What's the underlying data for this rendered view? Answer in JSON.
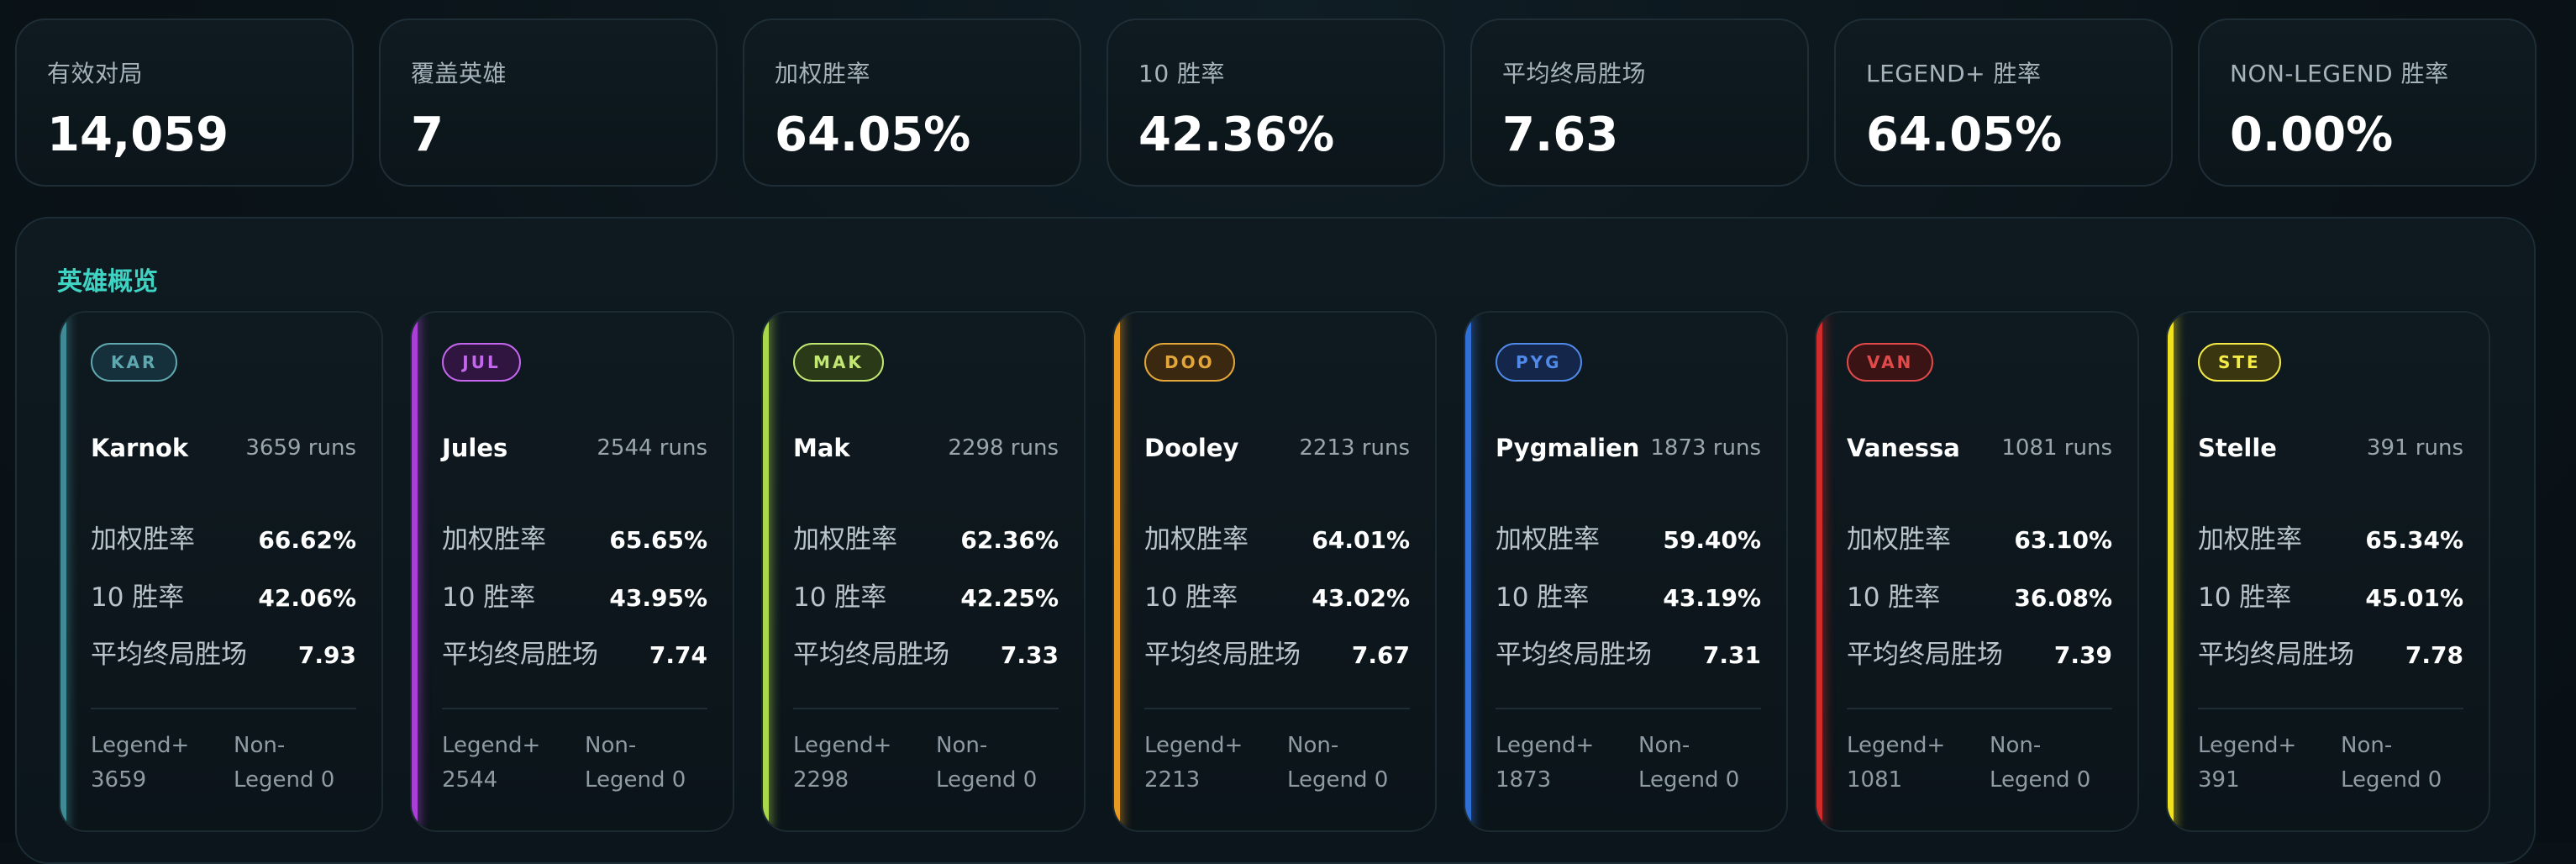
{
  "stats": [
    {
      "label": "有效对局",
      "value": "14,059"
    },
    {
      "label": "覆盖英雄",
      "value": "7"
    },
    {
      "label": "加权胜率",
      "value": "64.05%"
    },
    {
      "label": "10 胜率",
      "value": "42.36%"
    },
    {
      "label": "平均终局胜场",
      "value": "7.63"
    },
    {
      "label": "LEGEND+ 胜率",
      "value": "64.05%"
    },
    {
      "label": "NON-LEGEND 胜率",
      "value": "0.00%"
    }
  ],
  "overview": {
    "title": "英雄概览",
    "metric_labels": {
      "weighted": "加权胜率",
      "ten": "10 胜率",
      "avg": "平均终局胜场"
    },
    "heroes": [
      {
        "badge": "KAR",
        "name": "Karnok",
        "runs": "3659 runs",
        "weighted": "66.62%",
        "ten": "42.06%",
        "avg": "7.93",
        "legend": "Legend+ 3659",
        "non_legend": "Non-Legend 0",
        "accent": "#3e8b95",
        "badge_color": "#5fa8b0",
        "badge_bg": "#15303a"
      },
      {
        "badge": "JUL",
        "name": "Jules",
        "runs": "2544 runs",
        "weighted": "65.65%",
        "ten": "43.95%",
        "avg": "7.74",
        "legend": "Legend+ 2544",
        "non_legend": "Non-Legend 0",
        "accent": "#a93fd6",
        "badge_color": "#c466ee",
        "badge_bg": "#2f1540"
      },
      {
        "badge": "MAK",
        "name": "Mak",
        "runs": "2298 runs",
        "weighted": "62.36%",
        "ten": "42.25%",
        "avg": "7.33",
        "legend": "Legend+ 2298",
        "non_legend": "Non-Legend 0",
        "accent": "#a9d94a",
        "badge_color": "#c2e873",
        "badge_bg": "#2a3a18"
      },
      {
        "badge": "DOO",
        "name": "Dooley",
        "runs": "2213 runs",
        "weighted": "64.01%",
        "ten": "43.02%",
        "avg": "7.67",
        "legend": "Legend+ 2213",
        "non_legend": "Non-Legend 0",
        "accent": "#e69a22",
        "badge_color": "#e3a63a",
        "badge_bg": "#3a2810"
      },
      {
        "badge": "PYG",
        "name": "Pygmalien",
        "runs": "1873 runs",
        "weighted": "59.40%",
        "ten": "43.19%",
        "avg": "7.31",
        "legend": "Legend+ 1873",
        "non_legend": "Non-Legend 0",
        "accent": "#2f6fd6",
        "badge_color": "#4f8ae8",
        "badge_bg": "#14264a"
      },
      {
        "badge": "VAN",
        "name": "Vanessa",
        "runs": "1081 runs",
        "weighted": "63.10%",
        "ten": "36.08%",
        "avg": "7.39",
        "legend": "Legend+ 1081",
        "non_legend": "Non-Legend 0",
        "accent": "#d02c2c",
        "badge_color": "#e04a4a",
        "badge_bg": "#3a1414"
      },
      {
        "badge": "STE",
        "name": "Stelle",
        "runs": "391 runs",
        "weighted": "65.34%",
        "ten": "45.01%",
        "avg": "7.78",
        "legend": "Legend+ 391",
        "non_legend": "Non-Legend 0",
        "accent": "#f0e21e",
        "badge_color": "#f4ea48",
        "badge_bg": "#3a3710"
      }
    ]
  }
}
